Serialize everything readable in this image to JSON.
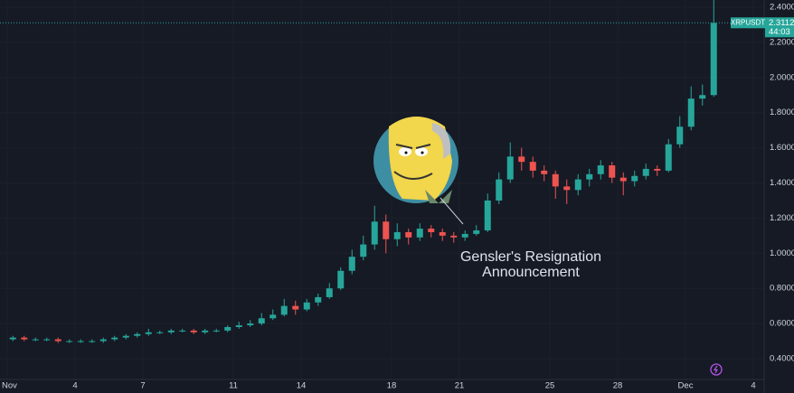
{
  "chart_data": {
    "type": "candlestick",
    "symbol": "XRPUSDT",
    "countdown": "44:03",
    "annotation": [
      "Gensler's Resignation",
      "Announcement"
    ],
    "categories": [
      "Nov",
      null,
      null,
      null,
      null,
      null,
      "4",
      null,
      null,
      null,
      null,
      null,
      "7",
      null,
      null,
      null,
      null,
      null,
      null,
      null,
      "11",
      null,
      null,
      null,
      null,
      null,
      "14",
      null,
      null,
      null,
      null,
      null,
      null,
      null,
      "18",
      null,
      null,
      null,
      null,
      null,
      "21",
      null,
      null,
      null,
      null,
      null,
      null,
      null,
      "25",
      null,
      null,
      null,
      null,
      null,
      "28",
      null,
      null,
      null,
      null,
      null,
      "Dec",
      null,
      null,
      null,
      null,
      null,
      "4"
    ],
    "open": [
      0.51,
      0.52,
      0.51,
      0.51,
      0.51,
      0.5,
      0.5,
      0.5,
      0.5,
      0.51,
      0.52,
      0.53,
      0.54,
      0.55,
      0.55,
      0.56,
      0.56,
      0.55,
      0.56,
      0.56,
      0.58,
      0.59,
      0.6,
      0.63,
      0.65,
      0.7,
      0.68,
      0.72,
      0.75,
      0.8,
      0.9,
      0.98,
      1.05,
      1.18,
      1.08,
      1.12,
      1.09,
      1.14,
      1.12,
      1.1,
      1.09,
      1.11,
      1.13,
      1.3,
      1.42,
      1.55,
      1.52,
      1.47,
      1.45,
      1.38,
      1.36,
      1.42,
      1.45,
      1.5,
      1.43,
      1.41,
      1.44,
      1.48,
      1.47,
      1.62,
      1.72,
      1.88,
      1.9,
      null,
      null,
      null,
      null
    ],
    "high": [
      0.53,
      0.53,
      0.52,
      0.52,
      0.52,
      0.51,
      0.51,
      0.51,
      0.52,
      0.53,
      0.54,
      0.55,
      0.57,
      0.56,
      0.57,
      0.57,
      0.57,
      0.57,
      0.57,
      0.59,
      0.61,
      0.62,
      0.66,
      0.68,
      0.74,
      0.73,
      0.74,
      0.77,
      0.83,
      0.92,
      1.02,
      1.1,
      1.27,
      1.22,
      1.17,
      1.14,
      1.17,
      1.16,
      1.14,
      1.12,
      1.13,
      1.16,
      1.34,
      1.46,
      1.63,
      1.6,
      1.55,
      1.5,
      1.47,
      1.42,
      1.45,
      1.48,
      1.53,
      1.52,
      1.46,
      1.47,
      1.51,
      1.5,
      1.65,
      1.78,
      1.95,
      1.96,
      2.45,
      null,
      null,
      null,
      null
    ],
    "low": [
      0.5,
      0.5,
      0.5,
      0.5,
      0.49,
      0.49,
      0.49,
      0.49,
      0.49,
      0.5,
      0.51,
      0.52,
      0.53,
      0.54,
      0.54,
      0.55,
      0.54,
      0.54,
      0.55,
      0.55,
      0.57,
      0.58,
      0.59,
      0.62,
      0.64,
      0.65,
      0.67,
      0.7,
      0.74,
      0.79,
      0.88,
      0.96,
      1.02,
      1.0,
      1.04,
      1.05,
      1.07,
      1.09,
      1.07,
      1.06,
      1.07,
      1.1,
      1.12,
      1.28,
      1.4,
      1.47,
      1.43,
      1.41,
      1.31,
      1.28,
      1.33,
      1.38,
      1.42,
      1.4,
      1.33,
      1.38,
      1.42,
      1.44,
      1.46,
      1.6,
      1.7,
      1.84,
      1.89,
      null,
      null,
      null,
      null
    ],
    "close": [
      0.52,
      0.51,
      0.51,
      0.51,
      0.5,
      0.5,
      0.5,
      0.5,
      0.51,
      0.52,
      0.53,
      0.54,
      0.55,
      0.55,
      0.56,
      0.56,
      0.55,
      0.56,
      0.56,
      0.58,
      0.59,
      0.6,
      0.63,
      0.65,
      0.7,
      0.68,
      0.72,
      0.75,
      0.8,
      0.9,
      0.98,
      1.05,
      1.18,
      1.08,
      1.12,
      1.09,
      1.14,
      1.12,
      1.1,
      1.09,
      1.11,
      1.13,
      1.3,
      1.42,
      1.55,
      1.52,
      1.47,
      1.45,
      1.38,
      1.36,
      1.42,
      1.45,
      1.5,
      1.43,
      1.41,
      1.44,
      1.48,
      1.47,
      1.62,
      1.72,
      1.88,
      1.9,
      2.3112,
      null,
      null,
      null,
      null
    ],
    "up_color": "#26a69a",
    "down_color": "#ef5350",
    "grid": true,
    "ylim": [
      0.3,
      2.48
    ],
    "yticks": [
      {
        "value": 0.4,
        "label": "0.4000"
      },
      {
        "value": 0.6,
        "label": "0.6000"
      },
      {
        "value": 0.8,
        "label": "0.8000"
      },
      {
        "value": 1.0,
        "label": "1.0000"
      },
      {
        "value": 1.2,
        "label": "1.2000"
      },
      {
        "value": 1.4,
        "label": "1.4000"
      },
      {
        "value": 1.6,
        "label": "1.6000"
      },
      {
        "value": 1.8,
        "label": "1.8000"
      },
      {
        "value": 2.0,
        "label": "2.0000"
      },
      {
        "value": 2.2,
        "label": "2.2000"
      },
      {
        "value": 2.4,
        "label": "2.4000"
      }
    ]
  }
}
